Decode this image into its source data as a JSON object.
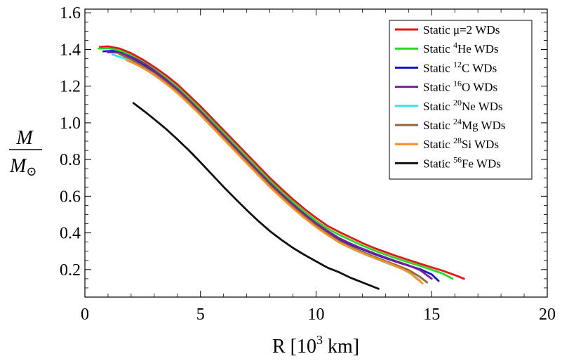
{
  "chart_data": {
    "type": "line",
    "xlabel_main": "R [10",
    "xlabel_exp": "3",
    "xlabel_unit": " km]",
    "ylabel_num": "M",
    "ylabel_den": "M",
    "ylabel_den_symbol": "⊙",
    "xlim": [
      0,
      20
    ],
    "ylim": [
      0.05,
      1.62
    ],
    "xticks": [
      0,
      5,
      10,
      15,
      20
    ],
    "yticks": [
      0.2,
      0.4,
      0.6,
      0.8,
      1.0,
      1.2,
      1.4,
      1.6
    ],
    "legend_position": "top-right",
    "grid": false,
    "series": [
      {
        "name_prefix": "Static ",
        "name_sup": "",
        "name_main": "μ=2 WDs",
        "color": "#e8141c",
        "x": [
          0.65,
          1.0,
          1.5,
          2.0,
          2.5,
          3.0,
          3.5,
          4.0,
          4.5,
          5.0,
          5.5,
          6.0,
          6.5,
          7.0,
          7.5,
          8.0,
          8.5,
          9.0,
          9.5,
          10.0,
          10.5,
          11.0,
          11.5,
          12.0,
          12.5,
          13.0,
          13.5,
          14.0,
          14.5,
          15.0,
          15.5,
          16.0,
          16.4
        ],
        "y": [
          1.414,
          1.417,
          1.405,
          1.38,
          1.345,
          1.305,
          1.26,
          1.21,
          1.15,
          1.09,
          1.025,
          0.96,
          0.895,
          0.83,
          0.765,
          0.7,
          0.64,
          0.583,
          0.53,
          0.482,
          0.438,
          0.405,
          0.375,
          0.345,
          0.318,
          0.295,
          0.273,
          0.252,
          0.232,
          0.212,
          0.193,
          0.17,
          0.15
        ]
      },
      {
        "name_prefix": "Static ",
        "name_sup": "4",
        "name_main": "He WDs",
        "color": "#22dd1c",
        "x": [
          0.6,
          1.0,
          1.5,
          2.0,
          2.5,
          3.0,
          3.5,
          4.0,
          4.5,
          5.0,
          5.5,
          6.0,
          6.5,
          7.0,
          7.5,
          8.0,
          8.5,
          9.0,
          9.5,
          10.0,
          10.5,
          11.0,
          11.5,
          12.0,
          12.5,
          13.0,
          13.5,
          14.0,
          14.5,
          15.0,
          15.5,
          15.9
        ],
        "y": [
          1.405,
          1.407,
          1.395,
          1.368,
          1.333,
          1.292,
          1.246,
          1.195,
          1.135,
          1.074,
          1.009,
          0.944,
          0.879,
          0.814,
          0.749,
          0.685,
          0.625,
          0.568,
          0.515,
          0.466,
          0.423,
          0.39,
          0.36,
          0.331,
          0.305,
          0.282,
          0.26,
          0.24,
          0.22,
          0.199,
          0.177,
          0.15
        ]
      },
      {
        "name_prefix": "Static ",
        "name_sup": "12",
        "name_main": "C WDs",
        "color": "#1414d2",
        "x": [
          0.8,
          1.2,
          1.6,
          2.0,
          2.5,
          3.0,
          3.5,
          4.0,
          4.5,
          5.0,
          5.5,
          6.0,
          6.5,
          7.0,
          7.5,
          8.0,
          8.5,
          9.0,
          9.5,
          10.0,
          10.5,
          11.0,
          11.5,
          12.0,
          12.5,
          13.0,
          13.5,
          14.0,
          14.5,
          15.0,
          15.3
        ],
        "y": [
          1.39,
          1.392,
          1.38,
          1.355,
          1.318,
          1.276,
          1.229,
          1.177,
          1.117,
          1.056,
          0.991,
          0.926,
          0.861,
          0.796,
          0.731,
          0.667,
          0.607,
          0.55,
          0.497,
          0.448,
          0.405,
          0.366,
          0.336,
          0.31,
          0.285,
          0.262,
          0.241,
          0.221,
          0.202,
          0.174,
          0.138
        ]
      },
      {
        "name_prefix": "Static ",
        "name_sup": "16",
        "name_main": "O WDs",
        "color": "#7a1f9f",
        "x": [
          1.0,
          1.4,
          1.8,
          2.2,
          2.6,
          3.0,
          3.5,
          4.0,
          4.5,
          5.0,
          5.5,
          6.0,
          6.5,
          7.0,
          7.5,
          8.0,
          8.5,
          9.0,
          9.5,
          10.0,
          10.5,
          11.0,
          11.5,
          12.0,
          12.5,
          13.0,
          13.5,
          14.0,
          14.5,
          15.0
        ],
        "y": [
          1.385,
          1.383,
          1.37,
          1.348,
          1.32,
          1.285,
          1.237,
          1.184,
          1.124,
          1.062,
          0.997,
          0.932,
          0.866,
          0.801,
          0.736,
          0.672,
          0.612,
          0.555,
          0.502,
          0.453,
          0.41,
          0.371,
          0.341,
          0.314,
          0.289,
          0.266,
          0.244,
          0.223,
          0.197,
          0.15
        ]
      },
      {
        "name_prefix": "Static ",
        "name_sup": "20",
        "name_main": "Ne WDs",
        "color": "#3ce4e4",
        "x": [
          1.2,
          1.7,
          2.2,
          2.7,
          3.2,
          3.7,
          4.2,
          4.7,
          5.2,
          5.7,
          6.2,
          6.7,
          7.2,
          7.7,
          8.2,
          8.7,
          9.2,
          9.7,
          10.2,
          10.7,
          11.2,
          11.7,
          12.2,
          12.7,
          13.2,
          13.7,
          14.2,
          14.5
        ],
        "y": [
          1.372,
          1.352,
          1.32,
          1.285,
          1.242,
          1.195,
          1.142,
          1.082,
          1.02,
          0.955,
          0.89,
          0.824,
          0.759,
          0.694,
          0.631,
          0.572,
          0.515,
          0.463,
          0.415,
          0.373,
          0.335,
          0.305,
          0.278,
          0.253,
          0.229,
          0.205,
          0.17,
          0.14
        ]
      },
      {
        "name_prefix": "Static ",
        "name_sup": "24",
        "name_main": "Mg WDs",
        "color": "#93653f",
        "x": [
          1.5,
          2.0,
          2.5,
          3.0,
          3.5,
          4.0,
          4.5,
          5.0,
          5.5,
          6.0,
          6.5,
          7.0,
          7.5,
          8.0,
          8.5,
          9.0,
          9.5,
          10.0,
          10.5,
          11.0,
          11.5,
          12.0,
          12.5,
          13.0,
          13.5,
          14.0,
          14.5,
          14.8
        ],
        "y": [
          1.375,
          1.346,
          1.31,
          1.27,
          1.223,
          1.171,
          1.112,
          1.05,
          0.985,
          0.919,
          0.853,
          0.788,
          0.723,
          0.659,
          0.599,
          0.542,
          0.489,
          0.44,
          0.396,
          0.355,
          0.324,
          0.297,
          0.271,
          0.247,
          0.223,
          0.198,
          0.16,
          0.13
        ]
      },
      {
        "name_prefix": "Static ",
        "name_sup": "28",
        "name_main": "Si WDs",
        "color": "#ff8f1f",
        "x": [
          1.8,
          2.2,
          2.6,
          3.0,
          3.5,
          4.0,
          4.5,
          5.0,
          5.5,
          6.0,
          6.5,
          7.0,
          7.5,
          8.0,
          8.5,
          9.0,
          9.5,
          10.0,
          10.5,
          11.0,
          11.5,
          12.0,
          12.5,
          13.0,
          13.5,
          14.0,
          14.6
        ],
        "y": [
          1.342,
          1.32,
          1.293,
          1.262,
          1.215,
          1.163,
          1.104,
          1.042,
          0.977,
          0.911,
          0.845,
          0.78,
          0.715,
          0.651,
          0.591,
          0.534,
          0.481,
          0.432,
          0.388,
          0.348,
          0.318,
          0.291,
          0.265,
          0.241,
          0.216,
          0.188,
          0.125
        ]
      },
      {
        "name_prefix": "Static ",
        "name_sup": "56",
        "name_main": "Fe WDs",
        "color": "#111111",
        "x": [
          2.1,
          2.6,
          3.0,
          3.5,
          4.0,
          4.5,
          5.0,
          5.5,
          6.0,
          6.5,
          7.0,
          7.5,
          8.0,
          8.5,
          9.0,
          9.5,
          10.0,
          10.5,
          11.0,
          11.5,
          12.0,
          12.7
        ],
        "y": [
          1.108,
          1.06,
          1.02,
          0.968,
          0.91,
          0.85,
          0.785,
          0.718,
          0.651,
          0.587,
          0.525,
          0.465,
          0.41,
          0.362,
          0.318,
          0.28,
          0.245,
          0.21,
          0.185,
          0.155,
          0.13,
          0.095
        ]
      }
    ]
  }
}
